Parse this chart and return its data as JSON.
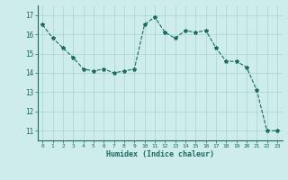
{
  "x": [
    0,
    1,
    2,
    3,
    4,
    5,
    6,
    7,
    8,
    9,
    10,
    11,
    12,
    13,
    14,
    15,
    16,
    17,
    18,
    19,
    20,
    21,
    22,
    23
  ],
  "y": [
    16.5,
    15.8,
    15.3,
    14.8,
    14.2,
    14.1,
    14.2,
    14.0,
    14.1,
    14.2,
    16.5,
    16.9,
    16.1,
    15.8,
    16.2,
    16.1,
    16.2,
    15.3,
    14.6,
    14.6,
    14.3,
    13.1,
    11.0,
    11.0
  ],
  "line_color": "#1a6b5a",
  "marker": "*",
  "marker_size": 3,
  "bg_color": "#ceecea",
  "grid_color": "#aed8d4",
  "xlabel": "Humidex (Indice chaleur)",
  "xlim": [
    -0.5,
    23.5
  ],
  "ylim": [
    10.5,
    17.5
  ],
  "yticks": [
    11,
    12,
    13,
    14,
    15,
    16,
    17
  ],
  "xticks": [
    0,
    1,
    2,
    3,
    4,
    5,
    6,
    7,
    8,
    9,
    10,
    11,
    12,
    13,
    14,
    15,
    16,
    17,
    18,
    19,
    20,
    21,
    22,
    23
  ]
}
